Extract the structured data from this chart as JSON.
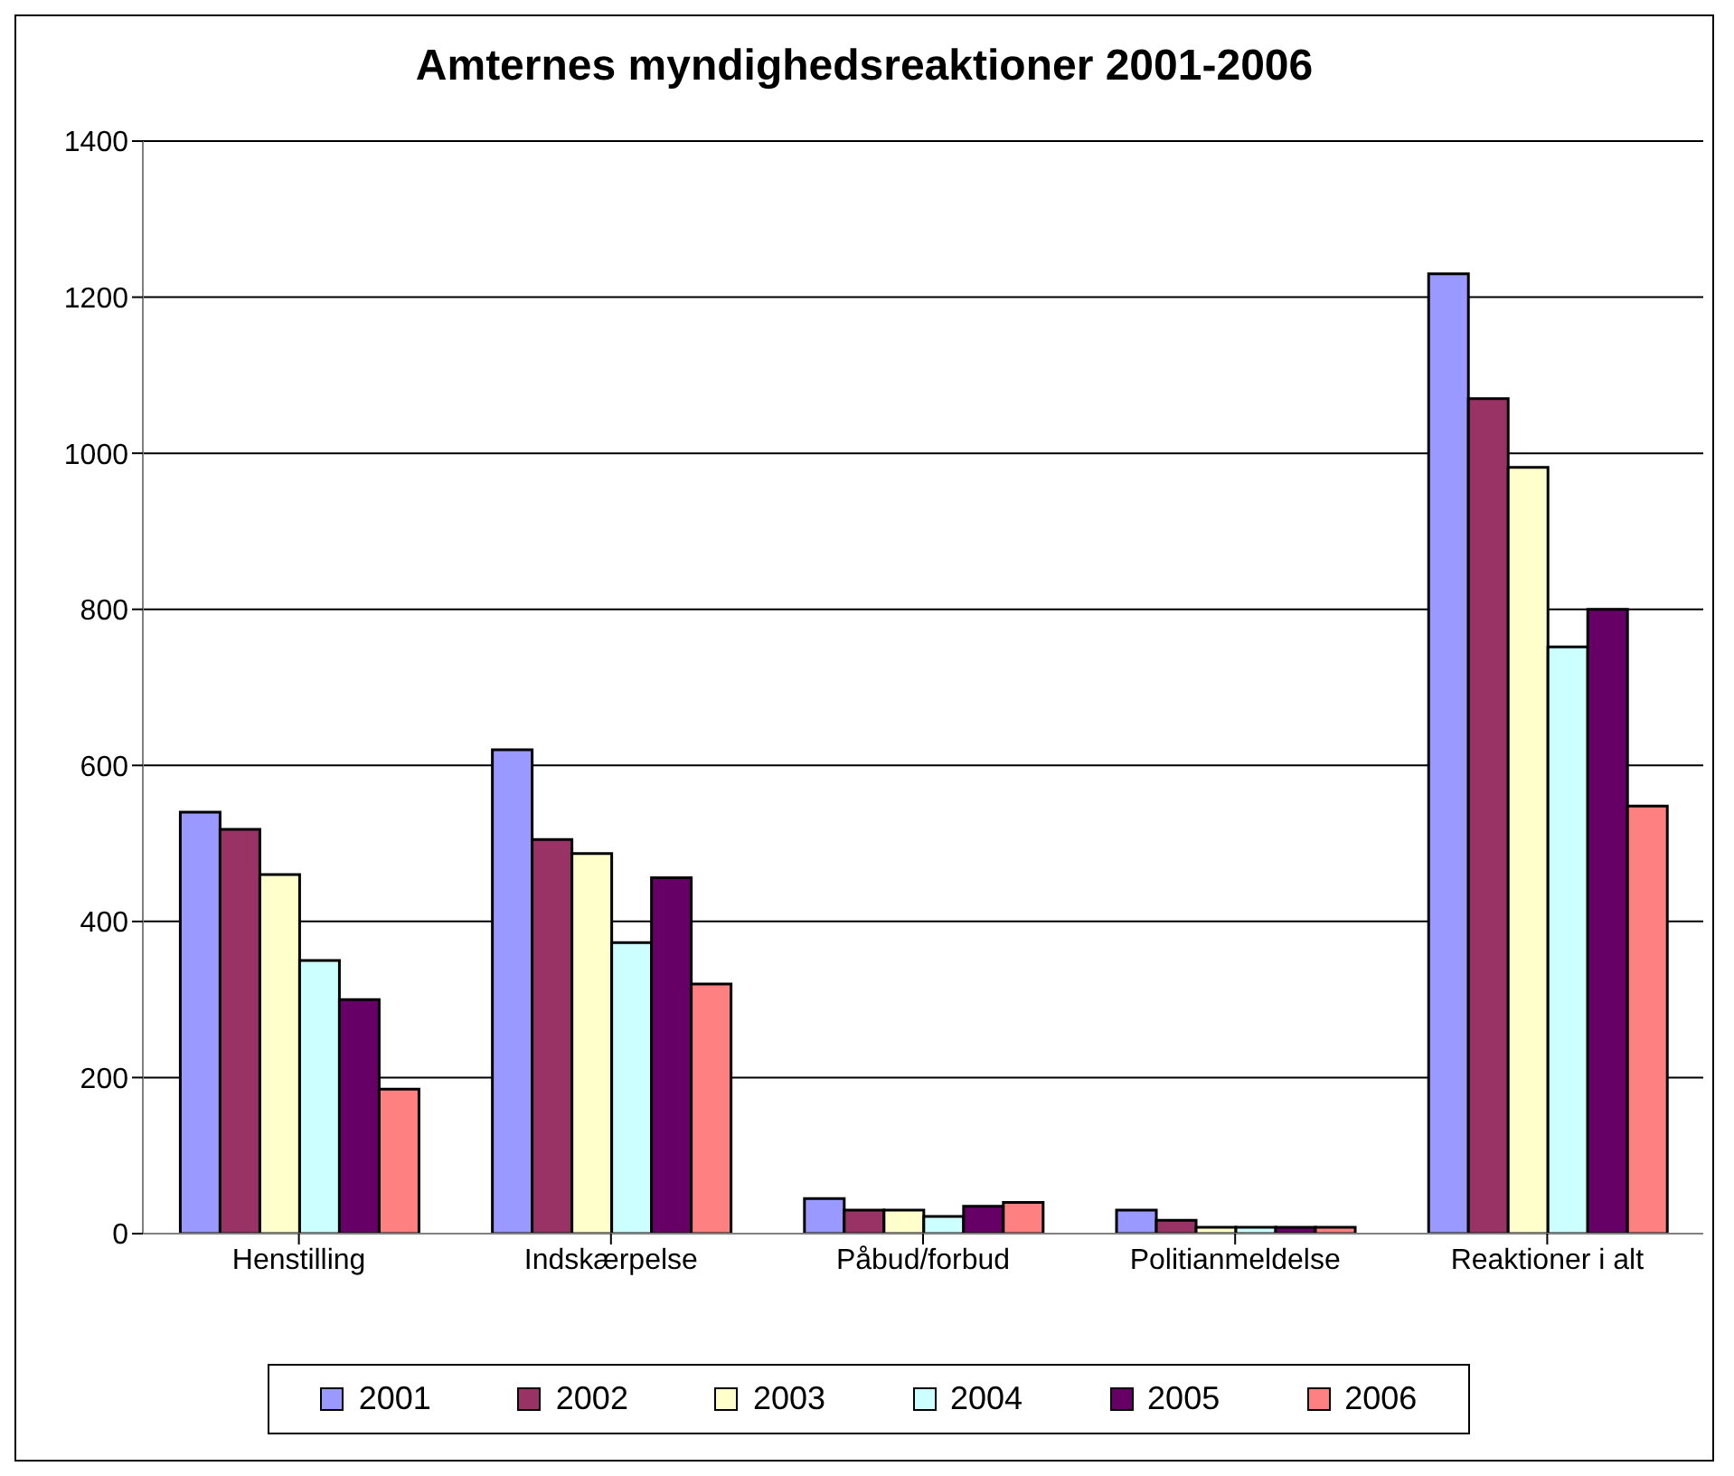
{
  "chart_data": {
    "type": "bar",
    "title": "Amternes myndighedsreaktioner 2001-2006",
    "categories": [
      "Henstilling",
      "Indskærpelse",
      "Påbud/forbud",
      "Politianmeldelse",
      "Reaktioner i alt"
    ],
    "series": [
      {
        "name": "2001",
        "color": "#9999ff",
        "values": [
          540,
          620,
          45,
          30,
          1230
        ]
      },
      {
        "name": "2002",
        "color": "#993366",
        "values": [
          518,
          505,
          30,
          17,
          1070
        ]
      },
      {
        "name": "2003",
        "color": "#ffffcc",
        "values": [
          460,
          487,
          30,
          8,
          982
        ]
      },
      {
        "name": "2004",
        "color": "#ccffff",
        "values": [
          350,
          373,
          22,
          8,
          752
        ]
      },
      {
        "name": "2005",
        "color": "#660066",
        "values": [
          300,
          456,
          35,
          8,
          800
        ]
      },
      {
        "name": "2006",
        "color": "#ff8080",
        "values": [
          185,
          320,
          40,
          8,
          548
        ]
      }
    ],
    "ylim": [
      0,
      1400
    ],
    "yticks": [
      0,
      200,
      400,
      600,
      800,
      1000,
      1200,
      1400
    ],
    "grid": "y",
    "legend": "bottom"
  }
}
